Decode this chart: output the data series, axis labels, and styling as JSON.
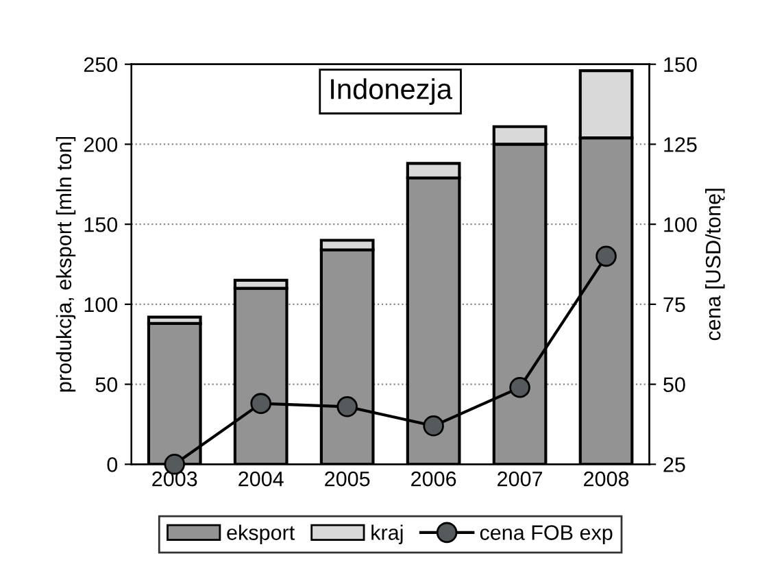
{
  "chart_data": {
    "type": "bar",
    "title": "Indonezja",
    "categories": [
      "2003",
      "2004",
      "2005",
      "2006",
      "2007",
      "2008"
    ],
    "stacked": true,
    "ylabel": "produkcja, eksport [mln ton]",
    "y2label": "cena [USD/tonę]",
    "ylim": [
      0,
      250
    ],
    "yticks": [
      0,
      50,
      100,
      150,
      200,
      250
    ],
    "y2lim": [
      25,
      150
    ],
    "y2ticks": [
      25,
      50,
      75,
      100,
      125,
      150
    ],
    "grid": true,
    "legend": "bottom",
    "marker": "circle",
    "line_style": "solid",
    "series": [
      {
        "name": "eksport",
        "color": "#939393",
        "values": [
          88,
          110,
          134,
          179,
          200,
          204
        ]
      },
      {
        "name": "kraj",
        "color": "#d9d9d9",
        "values": [
          4,
          5,
          6,
          9,
          11,
          42
        ]
      },
      {
        "name": "cena FOB exp",
        "type": "line",
        "axis": "y2",
        "color": "#000000",
        "values": [
          25,
          44,
          43,
          37,
          49,
          90
        ]
      }
    ]
  }
}
